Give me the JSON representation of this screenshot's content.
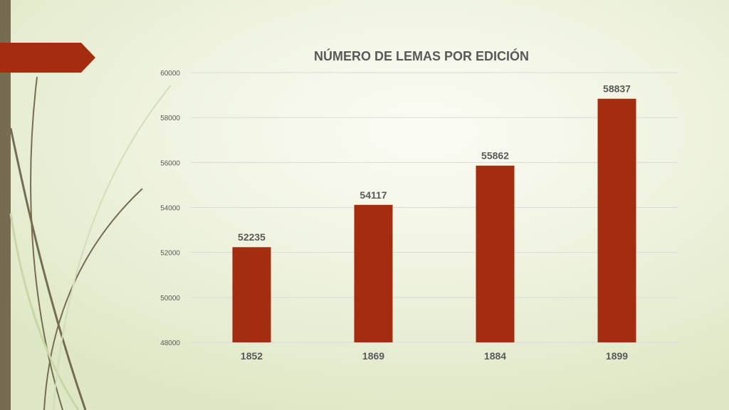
{
  "colors": {
    "bar": "#a52d0f",
    "accent_tab": "#a52d0f",
    "side_bar": "#766c52",
    "text": "#595959",
    "grid": "#d9d9d9"
  },
  "chart_data": {
    "type": "bar",
    "title": "NÚMERO DE LEMAS POR EDICIÓN",
    "xlabel": "",
    "ylabel": "",
    "categories": [
      "1852",
      "1869",
      "1884",
      "1899"
    ],
    "values": [
      52235,
      54117,
      55862,
      58837
    ],
    "data_labels": [
      "52235",
      "54117",
      "55862",
      "58837"
    ],
    "ylim": [
      48000,
      60000
    ],
    "yticks": [
      48000,
      50000,
      52000,
      54000,
      56000,
      58000,
      60000
    ],
    "ytick_labels": [
      "48000",
      "50000",
      "52000",
      "54000",
      "56000",
      "58000",
      "60000"
    ],
    "grid": true,
    "legend": "none"
  }
}
